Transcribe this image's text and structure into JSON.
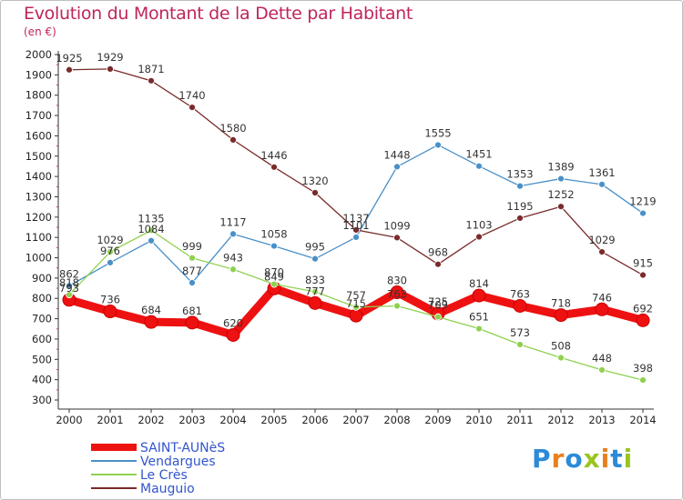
{
  "title": "Evolution du Montant de la Dette par Habitant",
  "unit": "(en €)",
  "logo": {
    "text": "Proxiti",
    "colors": [
      "#2d8ad6",
      "#e8801c",
      "#2d8ad6",
      "#9ac51f",
      "#e8801c",
      "#2d8ad6",
      "#9ac51f"
    ]
  },
  "chart_data": {
    "type": "line",
    "categories": [
      "2000",
      "2001",
      "2002",
      "2003",
      "2004",
      "2005",
      "2006",
      "2007",
      "2008",
      "2009",
      "2010",
      "2011",
      "2012",
      "2013",
      "2014"
    ],
    "ylim": [
      300,
      2000
    ],
    "yticks": [
      300,
      400,
      500,
      600,
      700,
      800,
      900,
      1000,
      1100,
      1200,
      1300,
      1400,
      1500,
      1600,
      1700,
      1800,
      1900,
      2000
    ],
    "grid": false,
    "legend_position": "bottom-left",
    "series": [
      {
        "name": "SAINT-AUNèS",
        "color": "#ee1111",
        "values": [
          793,
          736,
          684,
          681,
          620,
          849,
          777,
          715,
          830,
          725,
          814,
          763,
          718,
          746,
          692
        ]
      },
      {
        "name": "Vendargues",
        "color": "#4a90c8",
        "values": [
          862,
          976,
          1084,
          877,
          1117,
          1058,
          995,
          1101,
          1448,
          1555,
          1451,
          1353,
          1389,
          1361,
          1219
        ]
      },
      {
        "name": "Le Crès",
        "color": "#8fd14f",
        "values": [
          818,
          1029,
          1135,
          999,
          943,
          870,
          833,
          757,
          763,
          709,
          651,
          573,
          508,
          448,
          398
        ]
      },
      {
        "name": "Mauguio",
        "color": "#7a2a2a",
        "values": [
          1925,
          1929,
          1871,
          1740,
          1580,
          1446,
          1320,
          1137,
          1099,
          968,
          1103,
          1195,
          1252,
          1029,
          915
        ]
      }
    ]
  }
}
